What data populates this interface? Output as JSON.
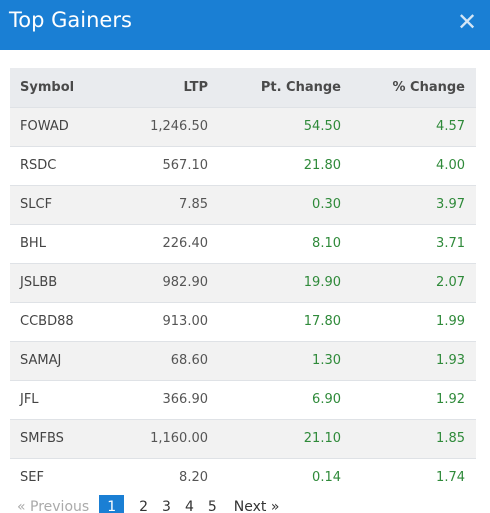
{
  "header": {
    "title": "Top Gainers",
    "close_glyph": "✕",
    "close_icon": "close-icon"
  },
  "table": {
    "columns": [
      "Symbol",
      "LTP",
      "Pt. Change",
      "% Change"
    ],
    "rows": [
      {
        "symbol": "FOWAD",
        "ltp": "1,246.50",
        "pt": "54.50",
        "pct": "4.57"
      },
      {
        "symbol": "RSDC",
        "ltp": "567.10",
        "pt": "21.80",
        "pct": "4.00"
      },
      {
        "symbol": "SLCF",
        "ltp": "7.85",
        "pt": "0.30",
        "pct": "3.97"
      },
      {
        "symbol": "BHL",
        "ltp": "226.40",
        "pt": "8.10",
        "pct": "3.71"
      },
      {
        "symbol": "JSLBB",
        "ltp": "982.90",
        "pt": "19.90",
        "pct": "2.07"
      },
      {
        "symbol": "CCBD88",
        "ltp": "913.00",
        "pt": "17.80",
        "pct": "1.99"
      },
      {
        "symbol": "SAMAJ",
        "ltp": "68.60",
        "pt": "1.30",
        "pct": "1.93"
      },
      {
        "symbol": "JFL",
        "ltp": "366.90",
        "pt": "6.90",
        "pct": "1.92"
      },
      {
        "symbol": "SMFBS",
        "ltp": "1,160.00",
        "pt": "21.10",
        "pct": "1.85"
      },
      {
        "symbol": "SEF",
        "ltp": "8.20",
        "pt": "0.14",
        "pct": "1.74"
      }
    ]
  },
  "pagination": {
    "prev_label": "« Previous",
    "pages": [
      "1",
      "2",
      "3",
      "4",
      "5"
    ],
    "active_page": "1",
    "next_label": "Next »"
  },
  "colors": {
    "header_bg": "#1a7fd4",
    "positive": "#2f8a3a",
    "active_page_bg": "#1a7fd4"
  }
}
